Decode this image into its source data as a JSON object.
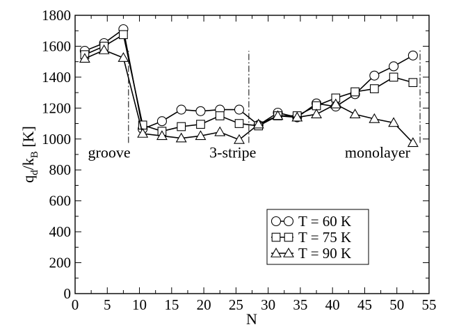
{
  "chart_data": {
    "type": "line",
    "title": "",
    "xlabel": "N",
    "ylabel_main": "q",
    "ylabel_sub1": "d",
    "ylabel_mid": "/k",
    "ylabel_sub2": "B",
    "ylabel_unit": " [K]",
    "xlim": [
      0,
      55
    ],
    "ylim": [
      0,
      1800
    ],
    "xticks": [
      0,
      5,
      10,
      15,
      20,
      25,
      30,
      35,
      40,
      45,
      50,
      55
    ],
    "yticks": [
      0,
      200,
      400,
      600,
      800,
      1000,
      1200,
      1400,
      1600,
      1800
    ],
    "grid": false,
    "legend_position": "bottom-right",
    "series": [
      {
        "name": "T = 60 K",
        "marker": "circle",
        "x": [
          1.5,
          4.5,
          7.5,
          10.5,
          13.5,
          16.5,
          19.5,
          22.5,
          25.5,
          28.5,
          31.5,
          34.5,
          37.5,
          40.5,
          43.5,
          46.5,
          49.5,
          52.5
        ],
        "values": [
          1570,
          1620,
          1710,
          1065,
          1115,
          1190,
          1180,
          1190,
          1190,
          1090,
          1170,
          1140,
          1230,
          1210,
          1290,
          1410,
          1470,
          1540
        ]
      },
      {
        "name": "T = 75 K",
        "marker": "square",
        "x": [
          1.5,
          4.5,
          7.5,
          10.5,
          13.5,
          16.5,
          19.5,
          22.5,
          25.5,
          28.5,
          31.5,
          34.5,
          37.5,
          40.5,
          43.5,
          46.5,
          49.5,
          52.5
        ],
        "values": [
          1545,
          1600,
          1675,
          1090,
          1050,
          1080,
          1095,
          1150,
          1100,
          1085,
          1150,
          1150,
          1215,
          1265,
          1305,
          1325,
          1400,
          1365
        ]
      },
      {
        "name": "T = 90 K",
        "marker": "triangle",
        "x": [
          1.5,
          4.5,
          7.5,
          10.5,
          13.5,
          16.5,
          19.5,
          22.5,
          25.5,
          28.5,
          31.5,
          34.5,
          37.5,
          40.5,
          43.5,
          46.5,
          49.5,
          52.5
        ],
        "values": [
          1520,
          1575,
          1525,
          1035,
          1020,
          1005,
          1020,
          1045,
          995,
          1095,
          1150,
          1140,
          1160,
          1225,
          1160,
          1130,
          1105,
          975
        ]
      }
    ],
    "annotations": [
      {
        "text": "groove",
        "x": 5.3,
        "y": 880
      },
      {
        "text": "3-stripe",
        "x": 24.5,
        "y": 880
      },
      {
        "text": "monolayer",
        "x": 47.0,
        "y": 880
      }
    ],
    "dividers": [
      {
        "x": 8.3,
        "y1": 975,
        "y2": 1570
      },
      {
        "x": 27.0,
        "y1": 975,
        "y2": 1570
      },
      {
        "x": 53.6,
        "y1": 975,
        "y2": 1580
      }
    ]
  }
}
